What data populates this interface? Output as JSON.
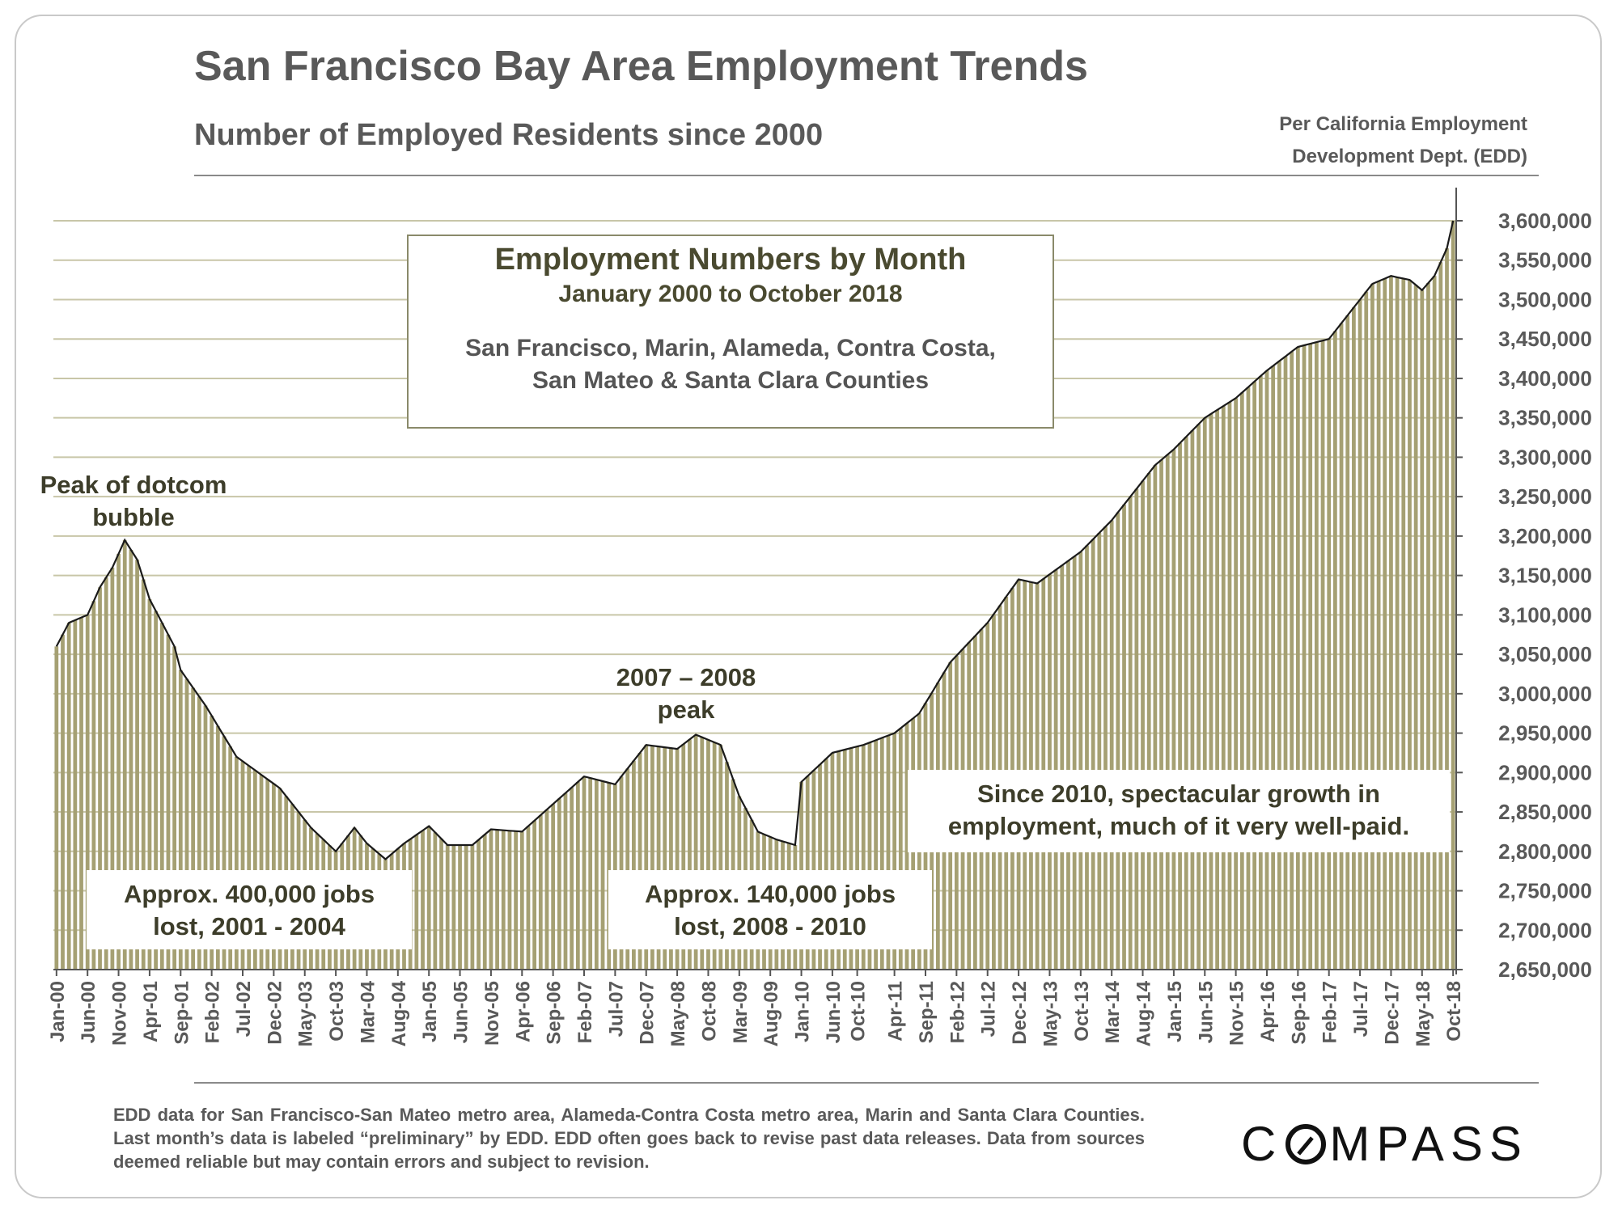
{
  "header": {
    "title": "San Francisco Bay Area Employment Trends",
    "subtitle": "Number of Employed  Residents since 2000",
    "source_line1": "Per California Employment",
    "source_line2": "Development Dept. (EDD)"
  },
  "legend_box": {
    "title": "Employment Numbers by Month",
    "subtitle": "January 2000 to October 2018",
    "areas_line1": "San Francisco, Marin, Alameda, Contra Costa,",
    "areas_line2": "San Mateo & Santa Clara Counties"
  },
  "annotations": {
    "dotcom_line1": "Peak of dotcom",
    "dotcom_line2": "bubble",
    "peak2008_line1": "2007 – 2008",
    "peak2008_line2": "peak",
    "lost1_line1": "Approx. 400,000 jobs",
    "lost1_line2": "lost, 2001 - 2004",
    "lost2_line1": "Approx. 140,000 jobs",
    "lost2_line2": "lost, 2008 - 2010",
    "growth_line1": "Since 2010, spectacular growth in",
    "growth_line2": "employment, much of it very well-paid."
  },
  "footnote": "EDD data for San Francisco-San Mateo metro area, Alameda-Contra Costa metro area, Marin and Santa Clara Counties. Last month’s data is labeled “preliminary” by EDD. EDD often goes back to revise past data releases. Data from sources deemed reliable but may contain errors and subject to revision.",
  "logo": {
    "left": "C",
    "right": "MPASS"
  },
  "colors": {
    "bar": "#a5a073",
    "line": "#1a1a1a",
    "grid": "#c8c6a8",
    "text": "#595959"
  },
  "chart_data": {
    "type": "bar",
    "title": "Employment Numbers by Month",
    "subtitle": "January 2000 to October 2018",
    "xlabel": "",
    "ylabel": "",
    "ylim": [
      2650000,
      3600000
    ],
    "y_ticks": [
      "2,650,000",
      "2,700,000",
      "2,750,000",
      "2,800,000",
      "2,850,000",
      "2,900,000",
      "2,950,000",
      "3,000,000",
      "3,050,000",
      "3,100,000",
      "3,150,000",
      "3,200,000",
      "3,250,000",
      "3,300,000",
      "3,350,000",
      "3,400,000",
      "3,450,000",
      "3,500,000",
      "3,550,000",
      "3,600,000"
    ],
    "y_tick_values": [
      2650000,
      2700000,
      2750000,
      2800000,
      2850000,
      2900000,
      2950000,
      3000000,
      3050000,
      3100000,
      3150000,
      3200000,
      3250000,
      3300000,
      3350000,
      3400000,
      3450000,
      3500000,
      3550000,
      3600000
    ],
    "x_tick_labels": [
      "Jan-00",
      "Jun-00",
      "Nov-00",
      "Apr-01",
      "Sep-01",
      "Feb-02",
      "Jul-02",
      "Dec-02",
      "May-03",
      "Oct-03",
      "Mar-04",
      "Aug-04",
      "Jan-05",
      "Jun-05",
      "Nov-05",
      "Apr-06",
      "Sep-06",
      "Feb-07",
      "Jul-07",
      "Dec-07",
      "May-08",
      "Oct-08",
      "Mar-09",
      "Aug-09",
      "Jan-10",
      "Jun-10",
      "Oct-10",
      "Apr-11",
      "Sep-11",
      "Feb-12",
      "Jul-12",
      "Dec-12",
      "May-13",
      "Oct-13",
      "Mar-14",
      "Aug-14",
      "Jan-15",
      "Jun-15",
      "Nov-15",
      "Apr-16",
      "Sep-16",
      "Feb-17",
      "Jul-17",
      "Dec-17",
      "May-18",
      "Oct-18"
    ],
    "series": [
      {
        "name": "Employed residents",
        "start": "Jan-00",
        "end": "Oct-18",
        "anchors": [
          [
            "Jan-00",
            3060000
          ],
          [
            "Mar-00",
            3090000
          ],
          [
            "Jun-00",
            3100000
          ],
          [
            "Aug-00",
            3135000
          ],
          [
            "Oct-00",
            3160000
          ],
          [
            "Dec-00",
            3195000
          ],
          [
            "Feb-01",
            3170000
          ],
          [
            "Apr-01",
            3120000
          ],
          [
            "Aug-01",
            3060000
          ],
          [
            "Sep-01",
            3030000
          ],
          [
            "Jan-02",
            2985000
          ],
          [
            "Jun-02",
            2920000
          ],
          [
            "Jan-03",
            2880000
          ],
          [
            "Jun-03",
            2830000
          ],
          [
            "Oct-03",
            2800000
          ],
          [
            "Jan-04",
            2830000
          ],
          [
            "Mar-04",
            2810000
          ],
          [
            "Jun-04",
            2790000
          ],
          [
            "Sep-04",
            2810000
          ],
          [
            "Jan-05",
            2832000
          ],
          [
            "Apr-05",
            2808000
          ],
          [
            "Aug-05",
            2808000
          ],
          [
            "Nov-05",
            2828000
          ],
          [
            "Apr-06",
            2825000
          ],
          [
            "Sep-06",
            2860000
          ],
          [
            "Feb-07",
            2895000
          ],
          [
            "Jul-07",
            2885000
          ],
          [
            "Dec-07",
            2935000
          ],
          [
            "May-08",
            2930000
          ],
          [
            "Aug-08",
            2948000
          ],
          [
            "Dec-08",
            2935000
          ],
          [
            "Mar-09",
            2870000
          ],
          [
            "Jun-09",
            2825000
          ],
          [
            "Sep-09",
            2815000
          ],
          [
            "Dec-09",
            2808000
          ],
          [
            "Jan-10",
            2888000
          ],
          [
            "Jun-10",
            2925000
          ],
          [
            "Nov-10",
            2935000
          ],
          [
            "Apr-11",
            2950000
          ],
          [
            "Aug-11",
            2975000
          ],
          [
            "Jan-12",
            3040000
          ],
          [
            "Jul-12",
            3090000
          ],
          [
            "Dec-12",
            3145000
          ],
          [
            "Mar-13",
            3140000
          ],
          [
            "Oct-13",
            3180000
          ],
          [
            "Mar-14",
            3220000
          ],
          [
            "Oct-14",
            3290000
          ],
          [
            "Jan-15",
            3310000
          ],
          [
            "Jun-15",
            3350000
          ],
          [
            "Nov-15",
            3375000
          ],
          [
            "Apr-16",
            3410000
          ],
          [
            "Sep-16",
            3440000
          ],
          [
            "Feb-17",
            3450000
          ],
          [
            "Jul-17",
            3500000
          ],
          [
            "Sep-17",
            3520000
          ],
          [
            "Dec-17",
            3530000
          ],
          [
            "Mar-18",
            3525000
          ],
          [
            "May-18",
            3512000
          ],
          [
            "Jul-18",
            3530000
          ],
          [
            "Sep-18",
            3565000
          ],
          [
            "Oct-18",
            3600000
          ]
        ]
      }
    ],
    "grid": true,
    "legend": "none"
  }
}
